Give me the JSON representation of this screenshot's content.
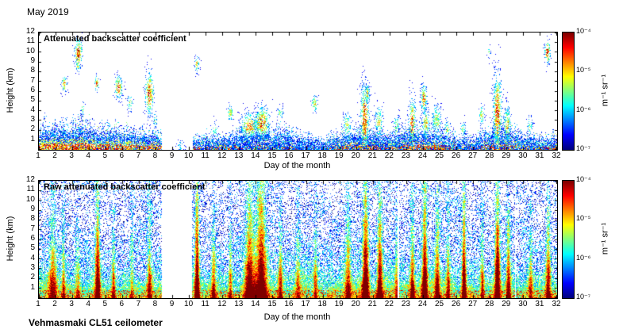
{
  "figure": {
    "title": "May 2019",
    "instrument": "Vehmasmaki CL51 ceilometer"
  },
  "chart_data": {
    "type": "heatmap",
    "month": "May 2019",
    "instrument": "Vehmasmaki CL51 ceilometer",
    "colormap": "jet",
    "panels": [
      {
        "title": "Attenuated backscatter coefficient",
        "xlabel": "Day of the month",
        "ylabel": "Height (km)",
        "xlim": [
          1,
          32
        ],
        "ylim": [
          0,
          12
        ],
        "xticks": [
          1,
          2,
          3,
          4,
          5,
          6,
          7,
          8,
          9,
          10,
          11,
          12,
          13,
          14,
          15,
          16,
          17,
          18,
          19,
          20,
          21,
          22,
          23,
          24,
          25,
          26,
          27,
          28,
          29,
          30,
          31,
          32
        ],
        "yticks": [
          1,
          2,
          3,
          4,
          5,
          6,
          7,
          8,
          9,
          10,
          11,
          12
        ],
        "colorbar": {
          "label": "m⁻¹ sr⁻¹",
          "ticks": [
            "10⁻⁴",
            "10⁻⁵",
            "10⁻⁶",
            "10⁻⁷"
          ],
          "range": [
            1e-07,
            0.0001
          ],
          "colormap": "jet"
        },
        "missing_data_days": [
          [
            8.35,
            10.18
          ]
        ],
        "boundary_layer_km": [
          [
            1,
            1.7
          ],
          [
            2,
            1.9
          ],
          [
            3,
            1.8
          ],
          [
            3.5,
            2.1
          ],
          [
            4,
            1.8
          ],
          [
            5,
            1.5
          ],
          [
            6,
            1.6
          ],
          [
            7,
            1.3
          ],
          [
            8.3,
            1.2
          ],
          [
            10.2,
            0.9
          ],
          [
            11,
            1.0
          ],
          [
            12,
            1.1
          ],
          [
            13,
            1.4
          ],
          [
            14,
            1.6
          ],
          [
            15,
            1.3
          ],
          [
            16,
            1.5
          ],
          [
            17,
            1.0
          ],
          [
            18,
            0.8
          ],
          [
            19,
            1.2
          ],
          [
            20,
            1.5
          ],
          [
            21,
            1.3
          ],
          [
            22,
            1.1
          ],
          [
            23,
            1.5
          ],
          [
            24,
            1.6
          ],
          [
            25,
            1.5
          ],
          [
            26,
            1.0
          ],
          [
            27,
            0.9
          ],
          [
            28,
            1.5
          ],
          [
            29,
            1.7
          ],
          [
            30,
            1.1
          ],
          [
            31,
            1.0
          ],
          [
            32,
            1.1
          ]
        ],
        "surface_warmth": [
          [
            1,
            0.85
          ],
          [
            3,
            0.9
          ],
          [
            5,
            0.8
          ],
          [
            7,
            0.7
          ],
          [
            8.3,
            0.6
          ],
          [
            10.2,
            0.3
          ],
          [
            12,
            0.35
          ],
          [
            13,
            0.2
          ],
          [
            15,
            0.15
          ],
          [
            18,
            0.1
          ],
          [
            19,
            0.45
          ],
          [
            20,
            0.5
          ],
          [
            21,
            0.45
          ],
          [
            22,
            0.3
          ],
          [
            23,
            0.55
          ],
          [
            24,
            0.6
          ],
          [
            25,
            0.55
          ],
          [
            26,
            0.2
          ],
          [
            27,
            0.15
          ],
          [
            28,
            0.5
          ],
          [
            29,
            0.55
          ],
          [
            30,
            0.2
          ],
          [
            31,
            0.35
          ],
          [
            32,
            0.45
          ]
        ],
        "cloud_features": [
          {
            "day": 2.5,
            "h": 6.8,
            "w": 0.1,
            "th": 0.5,
            "s": 0.75
          },
          {
            "day": 3.35,
            "h": 9.9,
            "w": 0.14,
            "th": 0.9,
            "s": 0.95
          },
          {
            "day": 3.3,
            "h": 8.5,
            "w": 0.08,
            "th": 0.35,
            "s": 0.6
          },
          {
            "day": 3.6,
            "h": 4.2,
            "w": 0.08,
            "th": 0.4,
            "s": 0.55
          },
          {
            "day": 4.45,
            "h": 6.8,
            "w": 0.08,
            "th": 0.45,
            "s": 0.85
          },
          {
            "day": 5.75,
            "h": 6.4,
            "w": 0.14,
            "th": 0.7,
            "s": 0.85
          },
          {
            "day": 6.45,
            "h": 4.8,
            "w": 0.1,
            "th": 0.5,
            "s": 0.6
          },
          {
            "day": 7.6,
            "h": 5.8,
            "w": 0.15,
            "th": 1.3,
            "s": 0.9
          },
          {
            "day": 7.95,
            "h": 3.1,
            "w": 0.08,
            "th": 0.5,
            "s": 0.5
          },
          {
            "day": 9.45,
            "h": 0.35,
            "w": 0.15,
            "th": 0.4,
            "s": 0.3
          },
          {
            "day": 10.45,
            "h": 8.8,
            "w": 0.08,
            "th": 0.5,
            "s": 0.7
          },
          {
            "day": 11.5,
            "h": 2.0,
            "w": 0.12,
            "th": 0.5,
            "s": 0.45
          },
          {
            "day": 12.45,
            "h": 3.8,
            "w": 0.1,
            "th": 0.5,
            "s": 0.65
          },
          {
            "day": 13.6,
            "h": 2.4,
            "w": 0.32,
            "th": 0.8,
            "s": 0.8
          },
          {
            "day": 14.35,
            "h": 2.7,
            "w": 0.28,
            "th": 1.0,
            "s": 0.85
          },
          {
            "day": 15.45,
            "h": 3.8,
            "w": 0.1,
            "th": 0.4,
            "s": 0.55
          },
          {
            "day": 17.5,
            "h": 4.7,
            "w": 0.1,
            "th": 0.5,
            "s": 0.7
          },
          {
            "day": 19.45,
            "h": 2.5,
            "w": 0.15,
            "th": 0.8,
            "s": 0.6
          },
          {
            "day": 20.5,
            "h": 3.2,
            "w": 0.16,
            "th": 2.0,
            "s": 0.9
          },
          {
            "day": 20.65,
            "h": 5.7,
            "w": 0.09,
            "th": 0.6,
            "s": 0.7
          },
          {
            "day": 21.35,
            "h": 2.8,
            "w": 0.14,
            "th": 1.0,
            "s": 0.65
          },
          {
            "day": 22.4,
            "h": 2.4,
            "w": 0.12,
            "th": 0.7,
            "s": 0.55
          },
          {
            "day": 23.35,
            "h": 2.8,
            "w": 0.13,
            "th": 1.6,
            "s": 0.8
          },
          {
            "day": 24.05,
            "h": 5.2,
            "w": 0.11,
            "th": 0.9,
            "s": 0.8
          },
          {
            "day": 24.15,
            "h": 2.6,
            "w": 0.14,
            "th": 0.9,
            "s": 0.7
          },
          {
            "day": 24.8,
            "h": 3.0,
            "w": 0.17,
            "th": 1.0,
            "s": 0.6
          },
          {
            "day": 25.45,
            "h": 2.0,
            "w": 0.12,
            "th": 0.6,
            "s": 0.55
          },
          {
            "day": 26.4,
            "h": 2.1,
            "w": 0.1,
            "th": 0.5,
            "s": 0.5
          },
          {
            "day": 27.5,
            "h": 3.5,
            "w": 0.1,
            "th": 0.6,
            "s": 0.6
          },
          {
            "day": 27.95,
            "h": 10.0,
            "w": 0.05,
            "th": 0.3,
            "s": 0.5
          },
          {
            "day": 28.45,
            "h": 3.8,
            "w": 0.15,
            "th": 2.4,
            "s": 0.9
          },
          {
            "day": 29.05,
            "h": 2.5,
            "w": 0.13,
            "th": 1.2,
            "s": 0.7
          },
          {
            "day": 30.4,
            "h": 2.4,
            "w": 0.1,
            "th": 0.6,
            "s": 0.5
          },
          {
            "day": 31.45,
            "h": 10.0,
            "w": 0.1,
            "th": 0.7,
            "s": 0.95
          }
        ]
      },
      {
        "title": "Raw attenuated backscatter coefficient",
        "xlabel": "Day of the month",
        "ylabel": "Height (km)",
        "xlim": [
          1,
          32
        ],
        "ylim": [
          0,
          12
        ],
        "xticks": [
          1,
          2,
          3,
          4,
          5,
          6,
          7,
          8,
          9,
          10,
          11,
          12,
          13,
          14,
          15,
          16,
          17,
          18,
          19,
          20,
          21,
          22,
          23,
          24,
          25,
          26,
          27,
          28,
          29,
          30,
          31,
          32
        ],
        "yticks": [
          1,
          2,
          3,
          4,
          5,
          6,
          7,
          8,
          9,
          10,
          11,
          12
        ],
        "colorbar": {
          "label": "m⁻¹ sr⁻¹",
          "ticks": [
            "10⁻⁴",
            "10⁻⁵",
            "10⁻⁶",
            "10⁻⁷"
          ],
          "range": [
            1e-07,
            0.0001
          ],
          "colormap": "jet"
        },
        "missing_data_days": [
          [
            8.35,
            10.15
          ],
          [
            22.49,
            22.56
          ],
          [
            29.49,
            29.56
          ]
        ],
        "streaks": [
          {
            "day": 1.8,
            "w": 0.25,
            "s": 0.5
          },
          {
            "day": 2.45,
            "w": 0.12,
            "s": 0.45
          },
          {
            "day": 3.3,
            "w": 0.15,
            "s": 0.35
          },
          {
            "day": 4.5,
            "w": 0.16,
            "s": 0.8
          },
          {
            "day": 5.45,
            "w": 0.12,
            "s": 0.5
          },
          {
            "day": 6.55,
            "w": 0.12,
            "s": 0.35
          },
          {
            "day": 7.6,
            "w": 0.16,
            "s": 0.55
          },
          {
            "day": 10.45,
            "w": 0.14,
            "s": 0.85
          },
          {
            "day": 11.45,
            "w": 0.14,
            "s": 0.5
          },
          {
            "day": 12.45,
            "w": 0.12,
            "s": 0.45
          },
          {
            "day": 13.6,
            "w": 0.3,
            "s": 0.75
          },
          {
            "day": 14.3,
            "w": 0.35,
            "s": 0.85
          },
          {
            "day": 15.45,
            "w": 0.15,
            "s": 0.5
          },
          {
            "day": 16.5,
            "w": 0.15,
            "s": 0.35
          },
          {
            "day": 17.55,
            "w": 0.12,
            "s": 0.45
          },
          {
            "day": 19.5,
            "w": 0.18,
            "s": 0.55
          },
          {
            "day": 20.55,
            "w": 0.2,
            "s": 0.85
          },
          {
            "day": 21.4,
            "w": 0.18,
            "s": 0.75
          },
          {
            "day": 22.4,
            "w": 0.1,
            "s": 0.4
          },
          {
            "day": 23.35,
            "w": 0.15,
            "s": 0.6
          },
          {
            "day": 24.1,
            "w": 0.18,
            "s": 0.85
          },
          {
            "day": 24.85,
            "w": 0.15,
            "s": 0.6
          },
          {
            "day": 25.5,
            "w": 0.12,
            "s": 0.5
          },
          {
            "day": 26.45,
            "w": 0.14,
            "s": 0.85
          },
          {
            "day": 27.55,
            "w": 0.12,
            "s": 0.5
          },
          {
            "day": 28.45,
            "w": 0.18,
            "s": 0.9
          },
          {
            "day": 29.1,
            "w": 0.14,
            "s": 0.6
          },
          {
            "day": 30.45,
            "w": 0.12,
            "s": 0.4
          },
          {
            "day": 31.5,
            "w": 0.15,
            "s": 0.6
          }
        ]
      }
    ]
  }
}
